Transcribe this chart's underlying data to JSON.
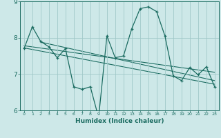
{
  "background_color": "#cde8e8",
  "grid_color": "#a0c8c8",
  "line_color": "#1a6b60",
  "xlabel": "Humidex (Indice chaleur)",
  "xlim": [
    -0.5,
    23.5
  ],
  "ylim": [
    6,
    9
  ],
  "yticks": [
    6,
    7,
    8,
    9
  ],
  "xticks": [
    0,
    1,
    2,
    3,
    4,
    5,
    6,
    7,
    8,
    9,
    10,
    11,
    12,
    13,
    14,
    15,
    16,
    17,
    18,
    19,
    20,
    21,
    22,
    23
  ],
  "series": [
    [
      0,
      7.7
    ],
    [
      1,
      8.3
    ],
    [
      2,
      7.9
    ],
    [
      3,
      7.75
    ],
    [
      4,
      7.45
    ],
    [
      5,
      7.7
    ],
    [
      6,
      6.65
    ],
    [
      7,
      6.58
    ],
    [
      8,
      6.65
    ],
    [
      9,
      5.8
    ],
    [
      10,
      8.05
    ],
    [
      11,
      7.45
    ],
    [
      12,
      7.5
    ],
    [
      13,
      8.25
    ],
    [
      14,
      8.8
    ],
    [
      15,
      8.85
    ],
    [
      16,
      8.72
    ],
    [
      17,
      8.05
    ],
    [
      18,
      6.95
    ],
    [
      19,
      6.82
    ],
    [
      20,
      7.18
    ],
    [
      21,
      6.98
    ],
    [
      22,
      7.2
    ],
    [
      23,
      6.65
    ]
  ],
  "trend_line1": [
    [
      0,
      7.72
    ],
    [
      23,
      6.72
    ]
  ],
  "trend_line2": [
    [
      0,
      7.78
    ],
    [
      23,
      7.05
    ]
  ],
  "trend_line3": [
    [
      2,
      7.88
    ],
    [
      23,
      6.82
    ]
  ]
}
